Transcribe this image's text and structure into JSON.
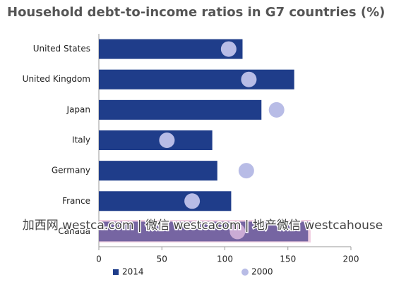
{
  "chart_data": {
    "type": "bar",
    "orientation": "horizontal",
    "title": "Household debt-to-income ratios in G7 countries (%)",
    "categories": [
      "United States",
      "United Kingdom",
      "Japan",
      "Italy",
      "Germany",
      "France",
      "Canada"
    ],
    "series": [
      {
        "name": "2014",
        "color": "#1f3d8a",
        "kind": "bar",
        "values": [
          114,
          155,
          129,
          90,
          94,
          105,
          166
        ]
      },
      {
        "name": "2000",
        "color": "#b8bce6",
        "kind": "dot",
        "values": [
          103,
          119,
          141,
          54,
          117,
          74,
          110
        ]
      }
    ],
    "xlim": [
      0,
      200
    ],
    "xticks": [
      0,
      50,
      100,
      150,
      200
    ],
    "grid": false,
    "legend": "bottom",
    "watermark": "加西网 westca.com | 微信 westcacom | 地产微信 westcahouse"
  }
}
